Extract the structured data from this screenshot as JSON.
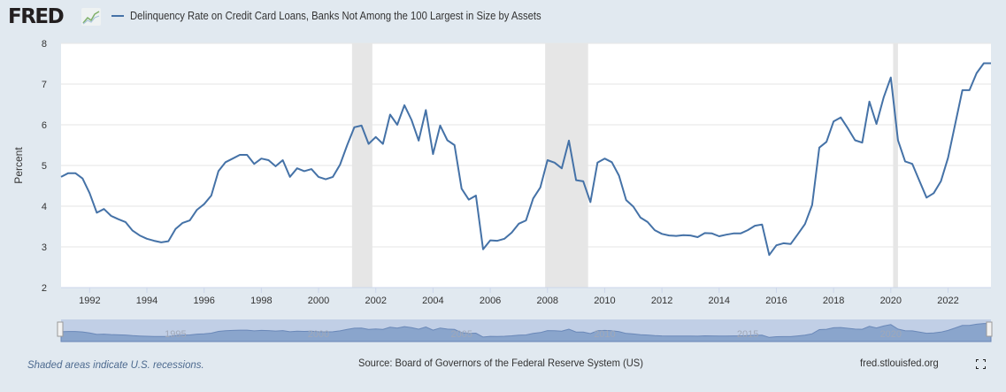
{
  "header": {
    "logo_text": "FRED",
    "series_title": "Delinquency Rate on Credit Card Loans, Banks Not Among the 100 Largest in Size by Assets"
  },
  "footer": {
    "recession_note": "Shaded areas indicate U.S. recessions.",
    "source": "Source: Board of Governors of the Federal Reserve System (US)",
    "site": "fred.stlouisfed.org"
  },
  "colors": {
    "line": "#4572a7",
    "recession": "#e6e6e6",
    "grid": "#e6e6e6",
    "navigator_fill": "#8aa5cc",
    "navigator_bg": "#c1cfe6"
  },
  "chart_data": {
    "type": "line",
    "title": "Delinquency Rate on Credit Card Loans, Banks Not Among the 100 Largest in Size by Assets",
    "xlabel": "",
    "ylabel": "Percent",
    "ylim": [
      2,
      8
    ],
    "xlim": [
      1991.0,
      2023.5
    ],
    "yticks": [
      2,
      3,
      4,
      5,
      6,
      7,
      8
    ],
    "xticks": [
      1992,
      1994,
      1996,
      1998,
      2000,
      2002,
      2004,
      2006,
      2008,
      2010,
      2012,
      2014,
      2016,
      2018,
      2020,
      2022
    ],
    "navigator_ticks": [
      1995,
      2000,
      2005,
      2010,
      2015,
      2020
    ],
    "grid": true,
    "legend": "top-left",
    "frequency": "quarterly",
    "start": "1991-Q1",
    "recessions": [
      [
        2001.17,
        2001.88
      ],
      [
        2007.92,
        2009.42
      ],
      [
        2020.08,
        2020.25
      ]
    ],
    "series": [
      {
        "name": "Delinquency Rate on Credit Card Loans, Banks Not Among the 100 Largest in Size by Assets",
        "values": [
          4.72,
          4.81,
          4.81,
          4.68,
          4.32,
          3.84,
          3.93,
          3.76,
          3.68,
          3.61,
          3.4,
          3.28,
          3.2,
          3.15,
          3.11,
          3.14,
          3.44,
          3.59,
          3.65,
          3.91,
          4.05,
          4.26,
          4.86,
          5.08,
          5.17,
          5.26,
          5.26,
          5.04,
          5.17,
          5.13,
          4.98,
          5.13,
          4.72,
          4.93,
          4.86,
          4.91,
          4.72,
          4.66,
          4.72,
          5.02,
          5.5,
          5.94,
          5.98,
          5.53,
          5.7,
          5.53,
          6.25,
          6.0,
          6.48,
          6.12,
          5.61,
          6.36,
          5.28,
          5.98,
          5.62,
          5.5,
          4.43,
          4.16,
          4.26,
          2.94,
          3.16,
          3.15,
          3.2,
          3.35,
          3.57,
          3.65,
          4.19,
          4.46,
          5.13,
          5.07,
          4.93,
          5.61,
          4.64,
          4.61,
          4.1,
          5.07,
          5.17,
          5.08,
          4.75,
          4.15,
          3.99,
          3.72,
          3.61,
          3.41,
          3.32,
          3.28,
          3.27,
          3.29,
          3.28,
          3.24,
          3.34,
          3.33,
          3.26,
          3.3,
          3.33,
          3.33,
          3.41,
          3.52,
          3.55,
          2.8,
          3.04,
          3.09,
          3.07,
          3.31,
          3.56,
          4.03,
          5.44,
          5.58,
          6.08,
          6.18,
          5.91,
          5.62,
          5.56,
          6.57,
          6.02,
          6.67,
          7.16,
          5.62,
          5.1,
          5.04,
          4.62,
          4.21,
          4.32,
          4.61,
          5.19,
          6.02,
          6.85,
          6.85,
          7.27,
          7.51,
          7.51
        ]
      }
    ]
  }
}
